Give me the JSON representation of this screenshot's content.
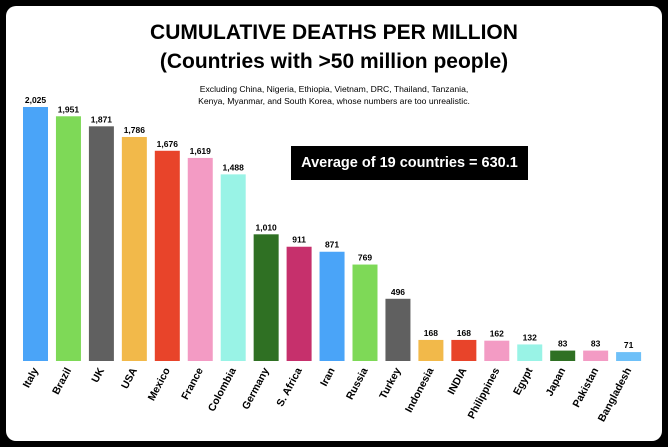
{
  "chart_data": {
    "type": "bar",
    "title": "CUMULATIVE DEATHS PER MILLION",
    "subtitle": "(Countries with >50 million people)",
    "note_lines": [
      "Excluding China, Nigeria, Ethiopia, Vietnam, DRC, Thailand, Tanzania,",
      "Kenya, Myanmar, and South Korea, whose numbers are too unrealistic."
    ],
    "annotation": "Average of 19 countries = 630.1",
    "categories": [
      "Italy",
      "Brazil",
      "UK",
      "USA",
      "Mexico",
      "France",
      "Colombia",
      "Germany",
      "S. Africa",
      "Iran",
      "Russia",
      "Turkey",
      "Indonesia",
      "INDIA",
      "Philippines",
      "Egypt",
      "Japan",
      "Pakistan",
      "Bangladesh"
    ],
    "values": [
      2025,
      1951,
      1871,
      1786,
      1676,
      1619,
      1488,
      1010,
      911,
      871,
      769,
      496,
      168,
      168,
      162,
      132,
      83,
      83,
      71
    ],
    "value_labels": [
      "2,025",
      "1,951",
      "1,871",
      "1,786",
      "1,676",
      "1,619",
      "1,488",
      "1,010",
      "911",
      "871",
      "769",
      "496",
      "168",
      "168",
      "162",
      "132",
      "83",
      "83",
      "71"
    ],
    "bar_colors": [
      "#4aa4f8",
      "#7ed957",
      "#606060",
      "#f2b94a",
      "#e8442a",
      "#f39bc4",
      "#99f3e6",
      "#2f7023",
      "#c6306c",
      "#4aa4f8",
      "#7ed957",
      "#606060",
      "#f2b94a",
      "#e8442a",
      "#f39bc4",
      "#99f3e6",
      "#2f7023",
      "#f39bc4",
      "#6ec0f8"
    ],
    "xlabel": "",
    "ylabel": "",
    "ylim": [
      0,
      2025
    ],
    "grid": false,
    "legend": "none"
  }
}
